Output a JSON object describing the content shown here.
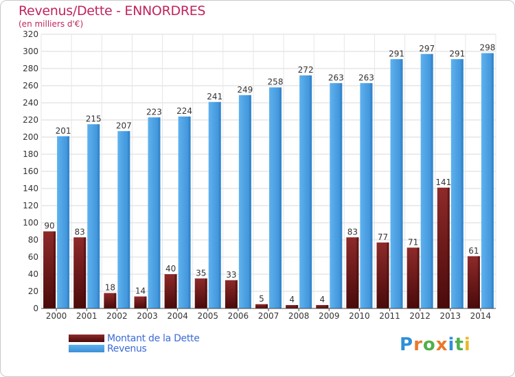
{
  "header": {
    "title": "Revenus/Dette - ENNORDRES",
    "subtitle": "(en milliers d'€)"
  },
  "legend": {
    "items": [
      {
        "label": "Montant de la Dette",
        "color": "#7a1d1d"
      },
      {
        "label": "Revenus",
        "color": "#4a9fe0"
      }
    ]
  },
  "logo": {
    "text": "Proxiti",
    "letters": [
      {
        "ch": "P",
        "color": "#2f8fd8"
      },
      {
        "ch": "r",
        "color": "#e8792b"
      },
      {
        "ch": "o",
        "color": "#4fb04a"
      },
      {
        "ch": "x",
        "color": "#e8792b"
      },
      {
        "ch": "i",
        "color": "#2f8fd8"
      },
      {
        "ch": "t",
        "color": "#4fb04a"
      },
      {
        "ch": "i",
        "color": "#e8b82b"
      }
    ]
  },
  "chart_data": {
    "type": "bar",
    "title": "Revenus/Dette - ENNORDRES",
    "subtitle": "(en milliers d'€)",
    "categories": [
      "2000",
      "2001",
      "2002",
      "2003",
      "2004",
      "2005",
      "2006",
      "2007",
      "2008",
      "2009",
      "2010",
      "2011",
      "2012",
      "2013",
      "2014"
    ],
    "series": [
      {
        "name": "Montant de la Dette",
        "color": "#7a1d1d",
        "values": [
          90,
          83,
          18,
          14,
          40,
          35,
          33,
          5,
          4,
          4,
          83,
          77,
          71,
          141,
          61
        ]
      },
      {
        "name": "Revenus",
        "color": "#4a9fe0",
        "values": [
          201,
          215,
          207,
          223,
          224,
          241,
          249,
          258,
          272,
          263,
          263,
          291,
          297,
          291,
          298
        ]
      }
    ],
    "ylim": [
      0,
      320
    ],
    "ytick_step": 20,
    "grid": true,
    "legend_position": "bottom-left"
  }
}
